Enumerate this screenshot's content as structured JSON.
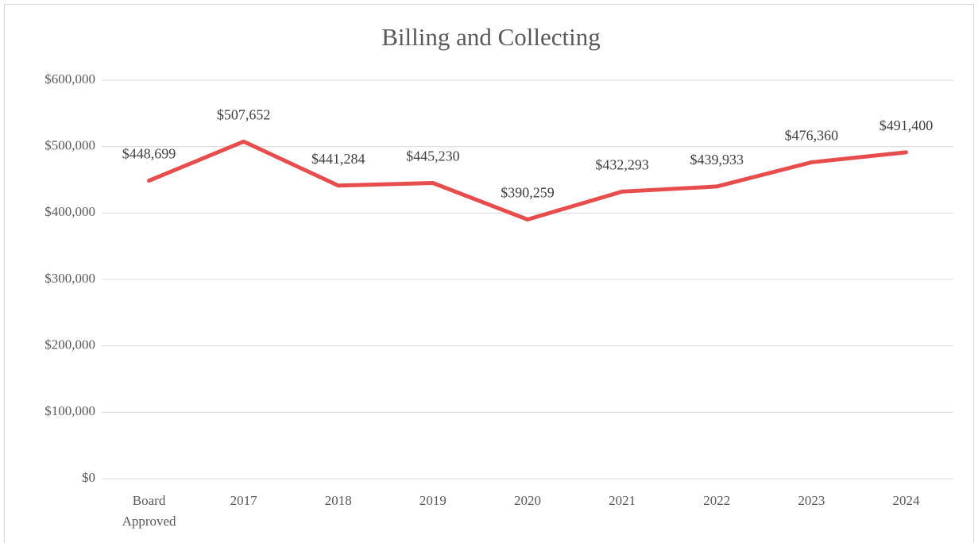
{
  "chart_data": {
    "type": "line",
    "title": "Billing and Collecting",
    "categories": [
      "Board Approved",
      "2017",
      "2018",
      "2019",
      "2020",
      "2021",
      "2022",
      "2023",
      "2024"
    ],
    "series": [
      {
        "name": "Billing and Collecting",
        "color": "#e84d4d",
        "values": [
          448699,
          507652,
          441284,
          445230,
          390259,
          432293,
          439933,
          476360,
          491400
        ],
        "value_labels": [
          "$448,699",
          "$507,652",
          "$441,284",
          "$445,230",
          "$390,259",
          "$432,293",
          "$439,933",
          "$476,360",
          "$491,400"
        ]
      }
    ],
    "ylim": [
      0,
      600000
    ],
    "yticks": [
      {
        "value": 0,
        "label": "$0"
      },
      {
        "value": 100000,
        "label": "$100,000"
      },
      {
        "value": 200000,
        "label": "$200,000"
      },
      {
        "value": 300000,
        "label": "$300,000"
      },
      {
        "value": 400000,
        "label": "$400,000"
      },
      {
        "value": 500000,
        "label": "$500,000"
      },
      {
        "value": 600000,
        "label": "$600,000"
      }
    ],
    "grid": true
  }
}
